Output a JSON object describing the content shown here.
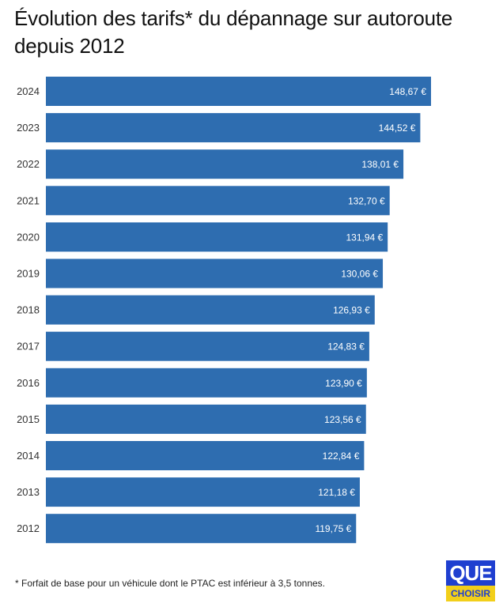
{
  "chart_data": {
    "type": "bar",
    "orientation": "horizontal",
    "title": "Évolution des tarifs* du dépannage sur autoroute depuis 2012",
    "categories": [
      "2024",
      "2023",
      "2022",
      "2021",
      "2020",
      "2019",
      "2018",
      "2017",
      "2016",
      "2015",
      "2014",
      "2013",
      "2012"
    ],
    "values": [
      148.67,
      144.52,
      138.01,
      132.7,
      131.94,
      130.06,
      126.93,
      124.83,
      123.9,
      123.56,
      122.84,
      121.18,
      119.75
    ],
    "value_labels": [
      "148,67 €",
      "144,52 €",
      "138,01 €",
      "132,70 €",
      "131,94 €",
      "130,06 €",
      "126,93 €",
      "124,83 €",
      "123,90 €",
      "123,56 €",
      "122,84 €",
      "121,18 €",
      "119,75 €"
    ],
    "bar_color": "#2e6db0",
    "xlabel": "",
    "ylabel": "",
    "grid": false,
    "legend": "none"
  },
  "footnote": "* Forfait de base pour un véhicule dont le PTAC est inférieur à 3,5 tonnes.",
  "logo": {
    "line1": "QUE",
    "line2": "CHOISIR"
  }
}
